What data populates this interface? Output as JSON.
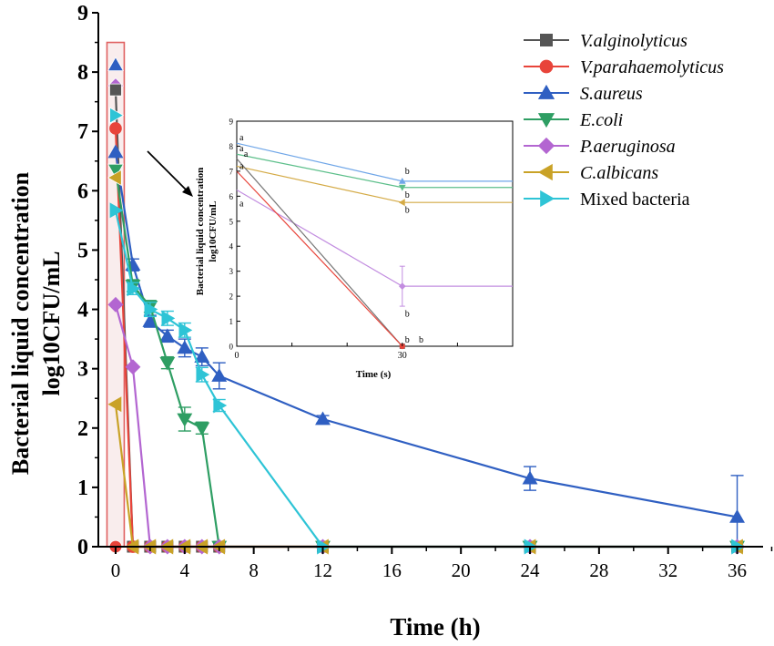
{
  "chart_data": [
    {
      "id": "main",
      "type": "line",
      "title": "",
      "xlabel": "Time (h)",
      "ylabel_line1": "Bacterial liquid concentration",
      "ylabel_line2": "log10CFU/mL",
      "xlim": [
        -1,
        37.5
      ],
      "ylim": [
        0,
        9
      ],
      "xticks": [
        0,
        4,
        8,
        12,
        16,
        20,
        24,
        28,
        32,
        36
      ],
      "yticks": [
        0,
        1,
        2,
        3,
        4,
        5,
        6,
        7,
        8,
        9
      ],
      "legend_position": "top-right",
      "series": [
        {
          "name": "V.alginolyticus",
          "italic": true,
          "color": "#555555",
          "marker": "square",
          "x": [
            0,
            1,
            2,
            3,
            4,
            5,
            6,
            12,
            24,
            36
          ],
          "y": [
            7.7,
            0,
            0,
            0,
            0,
            0,
            0,
            0,
            0,
            0
          ],
          "err": []
        },
        {
          "name": "V.parahaemolyticus",
          "italic": true,
          "color": "#e8443a",
          "marker": "circle",
          "x": [
            0,
            1,
            2,
            3,
            4,
            5,
            6,
            12,
            24,
            36
          ],
          "y": [
            7.05,
            0,
            0,
            0,
            0,
            0,
            0,
            0,
            0,
            0
          ],
          "err": []
        },
        {
          "name": "S.aureus",
          "italic": true,
          "color": "#2f5fc2",
          "marker": "triangle-up",
          "x": [
            0,
            1,
            2,
            3,
            4,
            5,
            6,
            12,
            24,
            36
          ],
          "y": [
            6.65,
            4.75,
            3.8,
            3.55,
            3.35,
            3.2,
            2.88,
            2.15,
            1.15,
            0.5
          ],
          "err": [
            0,
            0.1,
            0.1,
            0.1,
            0.15,
            0.15,
            0.22,
            0.06,
            0.2,
            0.7
          ]
        },
        {
          "name": "E.coli",
          "italic": true,
          "color": "#2e9e63",
          "marker": "triangle-down",
          "x": [
            0,
            1,
            2,
            3,
            4,
            5,
            6,
            12,
            24,
            36
          ],
          "y": [
            6.35,
            4.4,
            4.05,
            3.1,
            2.15,
            2.0,
            0,
            0,
            0,
            0
          ],
          "err": [
            0,
            0.1,
            0.1,
            0.1,
            0.2,
            0.1,
            0,
            0,
            0,
            0
          ]
        },
        {
          "name": "P.aeruginosa",
          "italic": true,
          "color": "#b366d1",
          "marker": "diamond",
          "x": [
            0,
            1,
            2,
            3,
            4,
            5,
            6,
            12,
            24,
            36
          ],
          "y": [
            4.08,
            3.03,
            0,
            0,
            0,
            0,
            0,
            0,
            0,
            0
          ],
          "err": []
        },
        {
          "name": "C.albicans",
          "italic": true,
          "color": "#c9a227",
          "marker": "triangle-left",
          "x": [
            0,
            1,
            2,
            3,
            4,
            5,
            6,
            12,
            24,
            36
          ],
          "y": [
            2.4,
            0,
            0,
            0,
            0,
            0,
            0,
            0,
            0,
            0
          ],
          "err": []
        },
        {
          "name": "Mixed bacteria",
          "italic": false,
          "color": "#2ec4d6",
          "marker": "triangle-right",
          "x": [
            0,
            1,
            2,
            3,
            4,
            5,
            6,
            12,
            24,
            36
          ],
          "y": [
            5.67,
            4.35,
            4.0,
            3.85,
            3.65,
            2.9,
            2.38,
            0,
            0,
            0
          ],
          "err": [
            0,
            0.1,
            0.12,
            0.12,
            0.12,
            0.12,
            0.1,
            0,
            0,
            0
          ]
        }
      ],
      "t0_markers": [
        {
          "series": "S.aureus",
          "y": 8.12
        },
        {
          "series": "P.aeruginosa",
          "y": 7.77
        },
        {
          "series": "V.alginolyticus",
          "y": 7.7
        },
        {
          "series": "Mixed bacteria",
          "y": 7.27
        },
        {
          "series": "E.coli",
          "y": 6.35
        },
        {
          "series": "C.albicans",
          "y": 6.22
        },
        {
          "series": "V.parahaemolyticus",
          "y": 0
        }
      ],
      "highlight_range": {
        "x": [
          -0.5,
          0.5
        ],
        "y": [
          0,
          8.5
        ]
      },
      "annotation": "arrow pointing to inset"
    },
    {
      "id": "inset",
      "type": "line",
      "title": "",
      "xlabel": "Time (s)",
      "ylabel_line1": "Bacterial liquid concentration",
      "ylabel_line2": "log10CFU/mL",
      "xlim": [
        0,
        50
      ],
      "ylim": [
        0,
        9
      ],
      "xticks": [
        0,
        30
      ],
      "yticks": [
        0,
        1,
        2,
        3,
        4,
        5,
        6,
        7,
        8,
        9
      ],
      "series": [
        {
          "name": "S.aureus",
          "color": "#6fa6e8",
          "marker": "triangle-up",
          "x": [
            0,
            30,
            50
          ],
          "y": [
            8.12,
            6.6,
            6.6
          ],
          "err": []
        },
        {
          "name": "E.coli",
          "color": "#5cbf8a",
          "marker": "triangle-down",
          "x": [
            0,
            30,
            50
          ],
          "y": [
            7.68,
            6.35,
            6.35
          ],
          "err": []
        },
        {
          "name": "C.albicans",
          "color": "#d4aa45",
          "marker": "triangle-left",
          "x": [
            0,
            30,
            50
          ],
          "y": [
            7.2,
            5.75,
            5.75
          ],
          "err": []
        },
        {
          "name": "P.aeruginosa",
          "color": "#c28de0",
          "marker": "diamond",
          "x": [
            0,
            30,
            50
          ],
          "y": [
            6.25,
            2.4,
            2.4
          ],
          "err": [
            0,
            0.8,
            0
          ]
        },
        {
          "name": "V.alginolyticus",
          "color": "#777777",
          "marker": "square",
          "x": [
            0,
            30
          ],
          "y": [
            7.5,
            0
          ],
          "err": []
        },
        {
          "name": "V.parahaemolyticus",
          "color": "#e8443a",
          "marker": "circle",
          "x": [
            0,
            30
          ],
          "y": [
            7.0,
            0
          ],
          "err": []
        }
      ],
      "labels": [
        {
          "text": "a",
          "x": 0,
          "y": 8.35
        },
        {
          "text": "a",
          "x": 0,
          "y": 7.9
        },
        {
          "text": "a",
          "x": 0.8,
          "y": 7.68
        },
        {
          "text": "a",
          "x": 0,
          "y": 7.2
        },
        {
          "text": "a",
          "x": 0,
          "y": 5.7
        },
        {
          "text": "b",
          "x": 30,
          "y": 7.0
        },
        {
          "text": "b",
          "x": 30,
          "y": 6.05
        },
        {
          "text": "b",
          "x": 30,
          "y": 5.45
        },
        {
          "text": "b",
          "x": 30,
          "y": 1.3
        },
        {
          "text": "b",
          "x": 30,
          "y": 0.25
        },
        {
          "text": "b",
          "x": 32.5,
          "y": 0.25
        }
      ]
    }
  ]
}
